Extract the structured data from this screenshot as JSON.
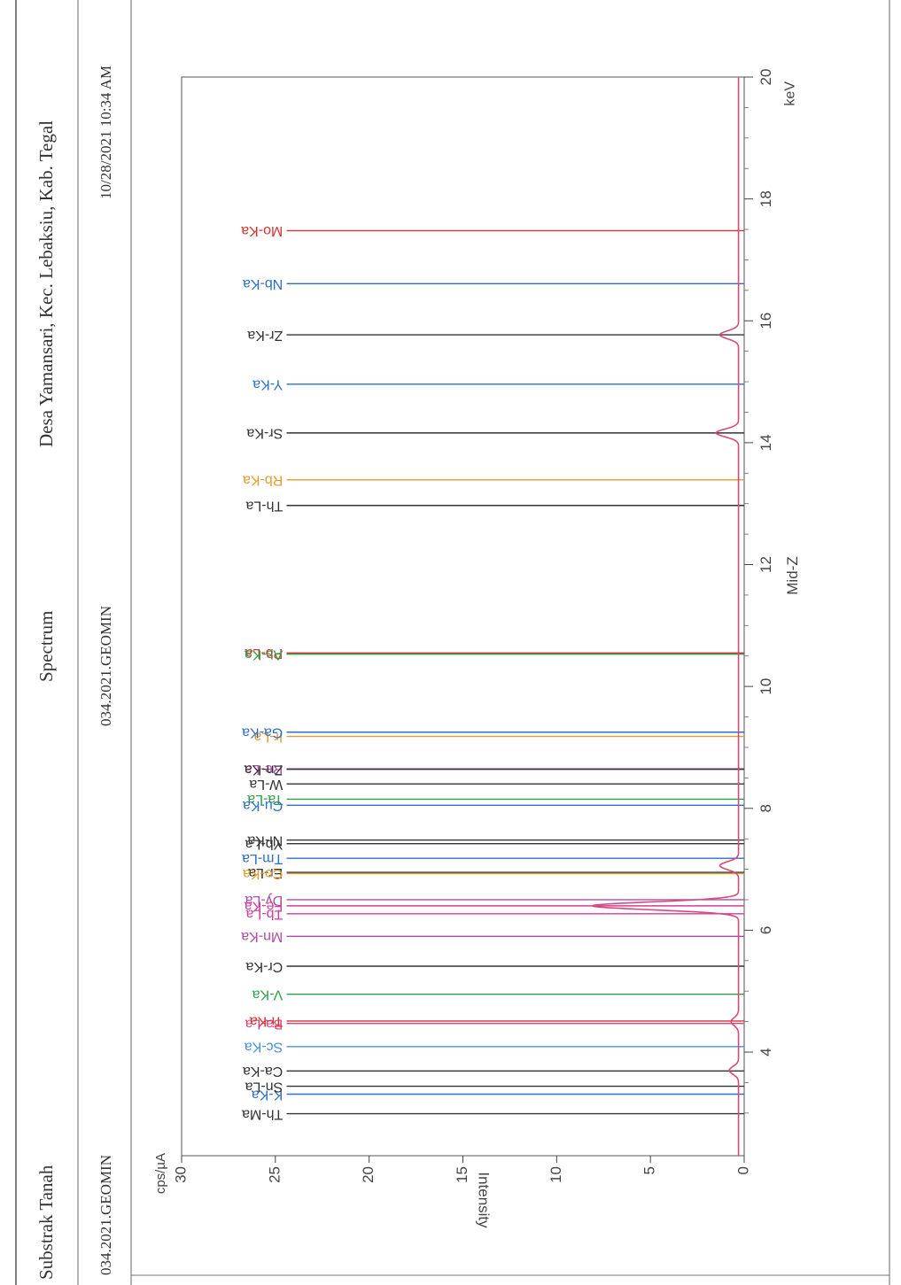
{
  "header": {
    "left": "Substrak Tanah",
    "center": "Spectrum",
    "right": "Desa Yamansari, Kec. Lebaksiu, Kab. Tegal",
    "sample_id_left": "034.2021.GEOMIN",
    "sample_id_center": "034.2021.GEOMIN",
    "datetime": "10/28/2021 10:34 AM"
  },
  "chart_data": {
    "type": "line",
    "x_axis": {
      "range": [
        2.3,
        20
      ],
      "ticks": [
        4,
        6,
        8,
        10,
        12,
        14,
        16,
        18,
        20
      ],
      "unit": "keV",
      "caption": "Mid-Z"
    },
    "y_axis": {
      "range": [
        0,
        30
      ],
      "ticks": [
        0,
        5,
        10,
        15,
        20,
        25,
        30
      ],
      "label": "Intensity",
      "unit": "cps/µA"
    },
    "grid": false,
    "markers": [
      {
        "label": "Th-Ma",
        "energy": 2.99,
        "color": "#333333"
      },
      {
        "label": "K-Ka",
        "energy": 3.31,
        "color": "#2e6fc7"
      },
      {
        "label": "Sn-La",
        "energy": 3.44,
        "color": "#333333"
      },
      {
        "label": "Ca-Ka",
        "energy": 3.69,
        "color": "#333333"
      },
      {
        "label": "Sc-Ka",
        "energy": 4.09,
        "color": "#4a90d9"
      },
      {
        "label": "Ba-La",
        "energy": 4.47,
        "color": "#e0457a"
      },
      {
        "label": "Ti-Ka",
        "energy": 4.51,
        "color": "#d93030"
      },
      {
        "label": "V-Ka",
        "energy": 4.95,
        "color": "#2ea04a"
      },
      {
        "label": "Cr-Ka",
        "energy": 5.41,
        "color": "#333333"
      },
      {
        "label": "Mn-Ka",
        "energy": 5.9,
        "color": "#b04aa8"
      },
      {
        "label": "Tb-La",
        "energy": 6.27,
        "color": "#d23c9c"
      },
      {
        "label": "Fe-Ka",
        "energy": 6.4,
        "color": "#d23c9c"
      },
      {
        "label": "Dy-La",
        "energy": 6.5,
        "color": "#b04aa8"
      },
      {
        "label": "Er-La",
        "energy": 6.95,
        "color": "#333333"
      },
      {
        "label": "Co-Ka",
        "energy": 6.93,
        "color": "#e39b2d"
      },
      {
        "label": "Tm-La",
        "energy": 7.18,
        "color": "#2e6fc7"
      },
      {
        "label": "Yb-La",
        "energy": 7.42,
        "color": "#333333"
      },
      {
        "label": "Ni-Ka",
        "energy": 7.48,
        "color": "#333333"
      },
      {
        "label": "Ta-La",
        "energy": 8.15,
        "color": "#2ea04a"
      },
      {
        "label": "Cu-Ka",
        "energy": 8.05,
        "color": "#2e6fc7"
      },
      {
        "label": "W-La",
        "energy": 8.4,
        "color": "#333333"
      },
      {
        "label": "Re-La",
        "energy": 8.65,
        "color": "#b04aa8"
      },
      {
        "label": "Zn-Ka",
        "energy": 8.64,
        "color": "#333333"
      },
      {
        "label": "Ir-La",
        "energy": 9.18,
        "color": "#e39b2d"
      },
      {
        "label": "Ga-Ka",
        "energy": 9.25,
        "color": "#2e6fc7"
      },
      {
        "label": "Pb-La",
        "energy": 10.55,
        "color": "#d93030"
      },
      {
        "label": "As-Ka",
        "energy": 10.53,
        "color": "#2ea04a"
      },
      {
        "label": "Th-La",
        "energy": 12.97,
        "color": "#333333"
      },
      {
        "label": "Rb-Ka",
        "energy": 13.39,
        "color": "#e39b2d"
      },
      {
        "label": "Sr-Ka",
        "energy": 14.16,
        "color": "#333333"
      },
      {
        "label": "Y-Ka",
        "energy": 14.96,
        "color": "#2e6fc7"
      },
      {
        "label": "Zr-Ka",
        "energy": 15.77,
        "color": "#333333"
      },
      {
        "label": "Nb-Ka",
        "energy": 16.61,
        "color": "#2e6fc7"
      },
      {
        "label": "Mo-Ka",
        "energy": 17.48,
        "color": "#d93030"
      }
    ],
    "spectrum": {
      "color": "#d84a7a",
      "baseline": 0.3,
      "peaks": [
        {
          "energy": 3.7,
          "height": 0.5
        },
        {
          "energy": 4.5,
          "height": 0.4
        },
        {
          "energy": 6.4,
          "height": 7.8
        },
        {
          "energy": 7.06,
          "height": 1.0
        },
        {
          "energy": 14.16,
          "height": 1.2
        },
        {
          "energy": 15.77,
          "height": 1.0
        }
      ]
    }
  }
}
